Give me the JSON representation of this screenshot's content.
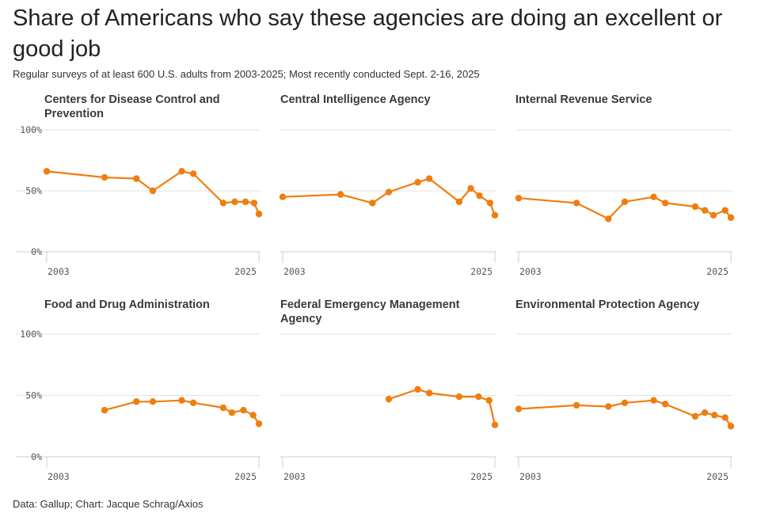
{
  "title": "Share of Americans who say these agencies are doing an excellent or good job",
  "subtitle": "Regular surveys of at least 600 U.S. adults from 2003-2025; Most recently conducted Sept. 2-16, 2025",
  "source": "Data: Gallup; Chart: Jacque Schrag/Axios",
  "colors": {
    "series": "#f07d0f",
    "grid": "#e2e2e2"
  },
  "chart_data": [
    {
      "type": "line",
      "title": "Centers for Disease Control and Prevention",
      "y_ticks": [
        "100%",
        "50%",
        "0%"
      ],
      "x_ticks": [
        "2003",
        "2025"
      ],
      "xlim": [
        2003,
        2025
      ],
      "ylim": [
        0,
        100
      ],
      "x": [
        2003,
        2009,
        2012.3,
        2014,
        2017,
        2018.2,
        2021.3,
        2022.5,
        2023.6,
        2024.5,
        2025
      ],
      "y": [
        66,
        61,
        60,
        50,
        66,
        64,
        40,
        41,
        41,
        40,
        31
      ]
    },
    {
      "type": "line",
      "title": "Central Intelligence Agency",
      "y_ticks": [
        "100%",
        "50%",
        "0%"
      ],
      "x_ticks": [
        "2003",
        "2025"
      ],
      "xlim": [
        2003,
        2025
      ],
      "ylim": [
        0,
        100
      ],
      "x": [
        2003,
        2009,
        2012.3,
        2014,
        2017,
        2018.2,
        2021.3,
        2022.5,
        2023.4,
        2024.5,
        2025
      ],
      "y": [
        45,
        47,
        40,
        49,
        57,
        60,
        41,
        52,
        46,
        40,
        30
      ]
    },
    {
      "type": "line",
      "title": "Internal Revenue Service",
      "y_ticks": [
        "100%",
        "50%",
        "0%"
      ],
      "x_ticks": [
        "2003",
        "2025"
      ],
      "xlim": [
        2003,
        2025
      ],
      "ylim": [
        0,
        100
      ],
      "x": [
        2003,
        2009,
        2012.3,
        2014,
        2017,
        2018.2,
        2021.3,
        2022.3,
        2023.2,
        2024.4,
        2025
      ],
      "y": [
        44,
        40,
        27,
        41,
        45,
        40,
        37,
        34,
        30,
        34,
        28
      ]
    },
    {
      "type": "line",
      "title": "Food and Drug Administration",
      "y_ticks": [
        "100%",
        "50%",
        "0%"
      ],
      "x_ticks": [
        "2003",
        "2025"
      ],
      "xlim": [
        2003,
        2025
      ],
      "ylim": [
        0,
        100
      ],
      "x": [
        2009,
        2012.3,
        2014,
        2017,
        2018.2,
        2021.3,
        2022.2,
        2023.4,
        2024.4,
        2025
      ],
      "y": [
        38,
        45,
        45,
        46,
        44,
        40,
        36,
        38,
        34,
        27
      ]
    },
    {
      "type": "line",
      "title": "Federal Emergency Management Agency",
      "y_ticks": [
        "100%",
        "50%",
        "0%"
      ],
      "x_ticks": [
        "2003",
        "2025"
      ],
      "xlim": [
        2003,
        2025
      ],
      "ylim": [
        0,
        100
      ],
      "x": [
        2014,
        2017,
        2018.2,
        2021.3,
        2023.3,
        2024.4,
        2025
      ],
      "y": [
        47,
        55,
        52,
        49,
        49,
        46,
        26
      ]
    },
    {
      "type": "line",
      "title": "Environmental Protection Agency",
      "y_ticks": [
        "100%",
        "50%",
        "0%"
      ],
      "x_ticks": [
        "2003",
        "2025"
      ],
      "xlim": [
        2003,
        2025
      ],
      "ylim": [
        0,
        100
      ],
      "x": [
        2003,
        2009,
        2012.3,
        2014,
        2017,
        2018.2,
        2021.3,
        2022.3,
        2023.3,
        2024.4,
        2025
      ],
      "y": [
        39,
        42,
        41,
        44,
        46,
        43,
        33,
        36,
        34,
        32,
        25
      ]
    }
  ]
}
